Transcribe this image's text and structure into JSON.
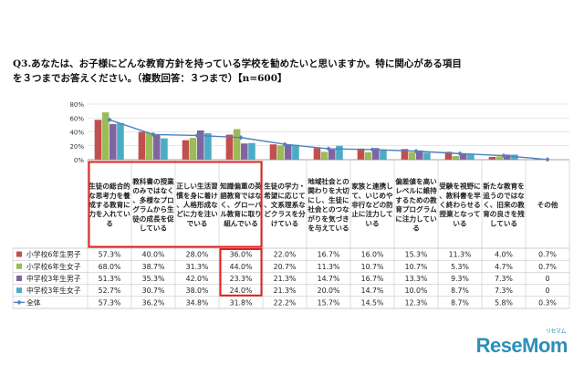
{
  "question": {
    "line1": "Q3.あなたは、お子様にどんな教育方針を持っている学校を勧めたいと思いますか。特に関心がある項目",
    "line2": "を３つまでお答えください。（複数回答：３つまで）【n=600】"
  },
  "watermark": {
    "brand": "ReseMom",
    "ruby": "リセマム"
  },
  "colors": {
    "s1": "#c0504d",
    "s2": "#9bbb59",
    "s3": "#8064a2",
    "s4": "#4bacc6",
    "total": "#4f81bd",
    "highlight": "#e02020"
  },
  "chart_data": {
    "type": "bar",
    "categories": [
      "生徒の総合的な思考力を養成する教育に力を入れている",
      "教科書の授業のみではなく、多様なプログラムから生徒の成長を促している",
      "正しい生活習慣を身に着け、人格形成などに力を注いでいる",
      "知識偏重の英語教育ではなく、グローバル教育に取り組んでいる",
      "生徒の学力・希望に応じて、文系理系などクラスを分けている",
      "地域社会との関わりを大切にし、生徒に社会とのつながりを気づきを与えている",
      "家族と連携して、いじめや非行などの防止に注力している",
      "偏差値を高いレベルに維持するための教育プログラムに注力している",
      "受験を視野に、教科書を早く終わらせる授業となっている",
      "新たな教育を追うのではなく、旧来の教育の良さを残している",
      "その他"
    ],
    "series": [
      {
        "name": "小学校6年生男子",
        "kind": "bar",
        "color": "#c0504d",
        "labels": [
          "57.3%",
          "40.0%",
          "28.0%",
          "36.0%",
          "22.0%",
          "16.7%",
          "16.0%",
          "15.3%",
          "11.3%",
          "4.0%",
          "0.7%"
        ],
        "values": [
          57.3,
          40.0,
          28.0,
          36.0,
          22.0,
          16.7,
          16.0,
          15.3,
          11.3,
          4.0,
          0.7
        ]
      },
      {
        "name": "小学校6年生女子",
        "kind": "bar",
        "color": "#9bbb59",
        "labels": [
          "68.0%",
          "38.7%",
          "31.3%",
          "44.0%",
          "20.7%",
          "11.3%",
          "10.7%",
          "10.7%",
          "5.3%",
          "4.7%",
          "0.7%"
        ],
        "values": [
          68.0,
          38.7,
          31.3,
          44.0,
          20.7,
          11.3,
          10.7,
          10.7,
          5.3,
          4.7,
          0.7
        ]
      },
      {
        "name": "中学校3年生男子",
        "kind": "bar",
        "color": "#8064a2",
        "labels": [
          "51.3%",
          "35.3%",
          "42.0%",
          "23.3%",
          "21.3%",
          "14.7%",
          "16.7%",
          "13.3%",
          "9.3%",
          "7.3%",
          "0"
        ],
        "values": [
          51.3,
          35.3,
          42.0,
          23.3,
          21.3,
          14.7,
          16.7,
          13.3,
          9.3,
          7.3,
          0
        ]
      },
      {
        "name": "中学校3年生女子",
        "kind": "bar",
        "color": "#4bacc6",
        "labels": [
          "52.7%",
          "30.7%",
          "38.0%",
          "24.0%",
          "21.3%",
          "20.0%",
          "14.7%",
          "10.0%",
          "8.7%",
          "7.3%",
          "0"
        ],
        "values": [
          52.7,
          30.7,
          38.0,
          24.0,
          21.3,
          20.0,
          14.7,
          10.0,
          8.7,
          7.3,
          0
        ]
      },
      {
        "name": "全体",
        "kind": "line",
        "color": "#4f81bd",
        "labels": [
          "57.3%",
          "36.2%",
          "34.8%",
          "31.8%",
          "22.2%",
          "15.7%",
          "14.5%",
          "12.3%",
          "8.7%",
          "5.8%",
          "0.3%"
        ],
        "values": [
          57.3,
          36.2,
          34.8,
          31.8,
          22.2,
          15.7,
          14.5,
          12.3,
          8.7,
          5.8,
          0.3
        ]
      }
    ],
    "ylim": [
      0,
      80
    ],
    "yticks": [
      "0%",
      "20%",
      "40%",
      "60%",
      "80%"
    ],
    "grid": true,
    "highlighted_categories": [
      0,
      1,
      2,
      3
    ],
    "highlighted_cells": {
      "category": 3,
      "rows": [
        0,
        1,
        2,
        3
      ]
    }
  }
}
